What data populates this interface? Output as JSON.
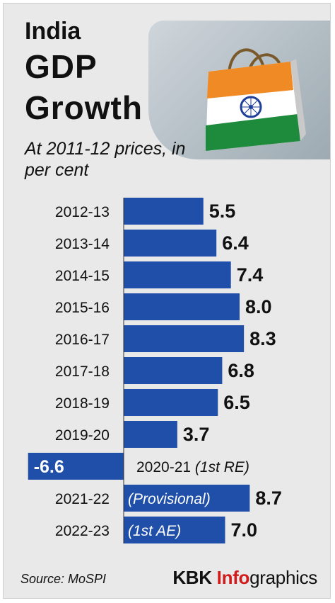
{
  "header": {
    "title_line1": "India",
    "title_line2": "GDP",
    "title_line3": "Growth",
    "subtitle": "At 2011-12 prices, in per cent"
  },
  "footer": {
    "source": "Source: MoSPI",
    "brand_prefix": "KBK ",
    "brand_accent": "Info",
    "brand_suffix": "graphics"
  },
  "colors": {
    "bar": "#1f4fa8",
    "background": "#e9e9e9",
    "flag_saffron": "#f08a24",
    "flag_green": "#1e8a3c",
    "chakra": "#1f3f99"
  },
  "chart_data": {
    "type": "bar",
    "orientation": "horizontal",
    "categories": [
      "2012-13",
      "2013-14",
      "2014-15",
      "2015-16",
      "2016-17",
      "2017-18",
      "2018-19",
      "2019-20",
      "2020-21",
      "2021-22",
      "2022-23"
    ],
    "values": [
      5.5,
      6.4,
      7.4,
      8.0,
      8.3,
      6.8,
      6.5,
      3.7,
      -6.6,
      8.7,
      7.0
    ],
    "value_labels": [
      "5.5",
      "6.4",
      "7.4",
      "8.0",
      "8.3",
      "6.8",
      "6.5",
      "3.7",
      "-6.6",
      "8.7",
      "7.0"
    ],
    "notes": [
      "",
      "",
      "",
      "",
      "",
      "",
      "",
      "",
      "(1st RE)",
      "(Provisional)",
      "(1st AE)"
    ],
    "title": "India GDP Growth",
    "unit": "per cent"
  }
}
